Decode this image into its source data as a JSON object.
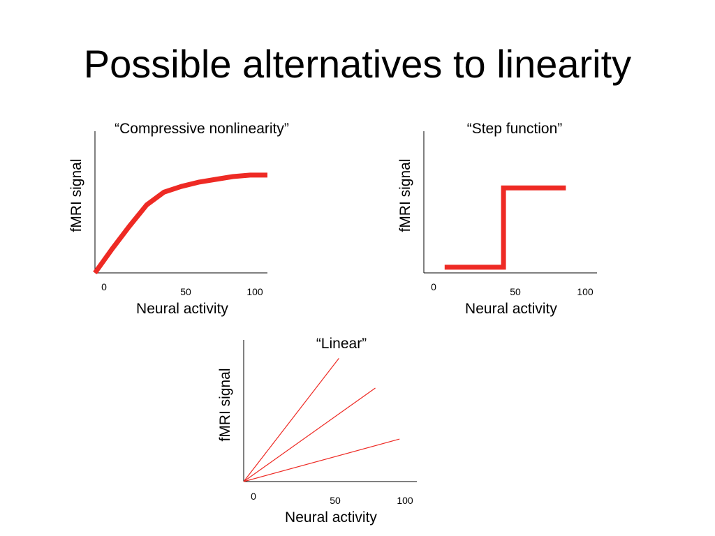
{
  "slide": {
    "title": "Possible alternatives to linearity"
  },
  "colors": {
    "curve": "#ee2a24",
    "axis": "#000000",
    "background": "#ffffff"
  },
  "chart_data": [
    {
      "type": "line",
      "title": "“Compressive nonlinearity”",
      "xlabel": "Neural activity",
      "ylabel": "fMRI signal",
      "xticks": [
        "0",
        "50",
        "100"
      ],
      "xlim": [
        0,
        100
      ],
      "ylim": [
        0,
        1
      ],
      "series": [
        {
          "x": [
            0,
            10,
            20,
            30,
            40,
            50,
            60,
            70,
            80,
            90,
            100
          ],
          "y": [
            0.0,
            0.17,
            0.33,
            0.48,
            0.57,
            0.61,
            0.64,
            0.66,
            0.68,
            0.69,
            0.69
          ]
        }
      ]
    },
    {
      "type": "line",
      "title": "“Step function”",
      "xlabel": "Neural activity",
      "ylabel": "fMRI signal",
      "xticks": [
        "0",
        "50",
        "100"
      ],
      "xlim": [
        0,
        100
      ],
      "ylim": [
        0,
        1
      ],
      "series": [
        {
          "x": [
            12,
            46,
            46,
            82
          ],
          "y": [
            0.04,
            0.04,
            0.6,
            0.6
          ]
        }
      ]
    },
    {
      "type": "line",
      "title": "“Linear”",
      "xlabel": "Neural activity",
      "ylabel": "fMRI signal",
      "xticks": [
        "0",
        "50",
        "100"
      ],
      "xlim": [
        0,
        100
      ],
      "ylim": [
        0,
        1
      ],
      "series": [
        {
          "x": [
            0,
            55
          ],
          "y": [
            0,
            0.87
          ]
        },
        {
          "x": [
            0,
            76
          ],
          "y": [
            0,
            0.66
          ]
        },
        {
          "x": [
            0,
            90
          ],
          "y": [
            0,
            0.3
          ]
        }
      ]
    }
  ]
}
